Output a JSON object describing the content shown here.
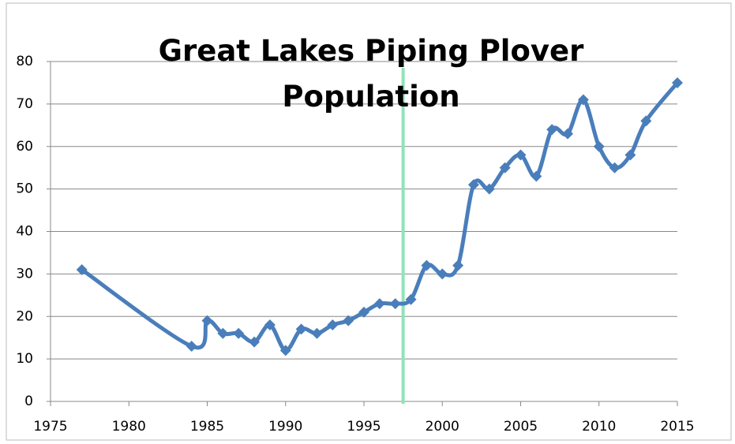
{
  "chart_data": {
    "type": "line",
    "title": "Great Lakes Piping Plover Population",
    "x": [
      1977,
      1984,
      1985,
      1986,
      1987,
      1988,
      1989,
      1990,
      1991,
      1992,
      1993,
      1994,
      1995,
      1996,
      1997,
      1998,
      1999,
      2000,
      2001,
      2002,
      2003,
      2004,
      2005,
      2006,
      2007,
      2008,
      2009,
      2010,
      2011,
      2012,
      2013,
      2015
    ],
    "series": [
      {
        "color": "#4a7ebb",
        "values": [
          31,
          13,
          19,
          16,
          16,
          14,
          18,
          12,
          17,
          16,
          18,
          19,
          21,
          23,
          23,
          24,
          32,
          30,
          32,
          51,
          50,
          55,
          58,
          53,
          64,
          63,
          71,
          60,
          55,
          58,
          66,
          75
        ]
      }
    ],
    "xlim": [
      1975,
      2015
    ],
    "xticks": [
      1975,
      1980,
      1985,
      1990,
      1995,
      2000,
      2005,
      2010,
      2015
    ],
    "ylim": [
      0,
      80
    ],
    "yticks": [
      0,
      10,
      20,
      30,
      40,
      50,
      60,
      70,
      80
    ],
    "grid": true,
    "vline": {
      "x": 1997.5,
      "color": "#8fe3b8"
    }
  }
}
